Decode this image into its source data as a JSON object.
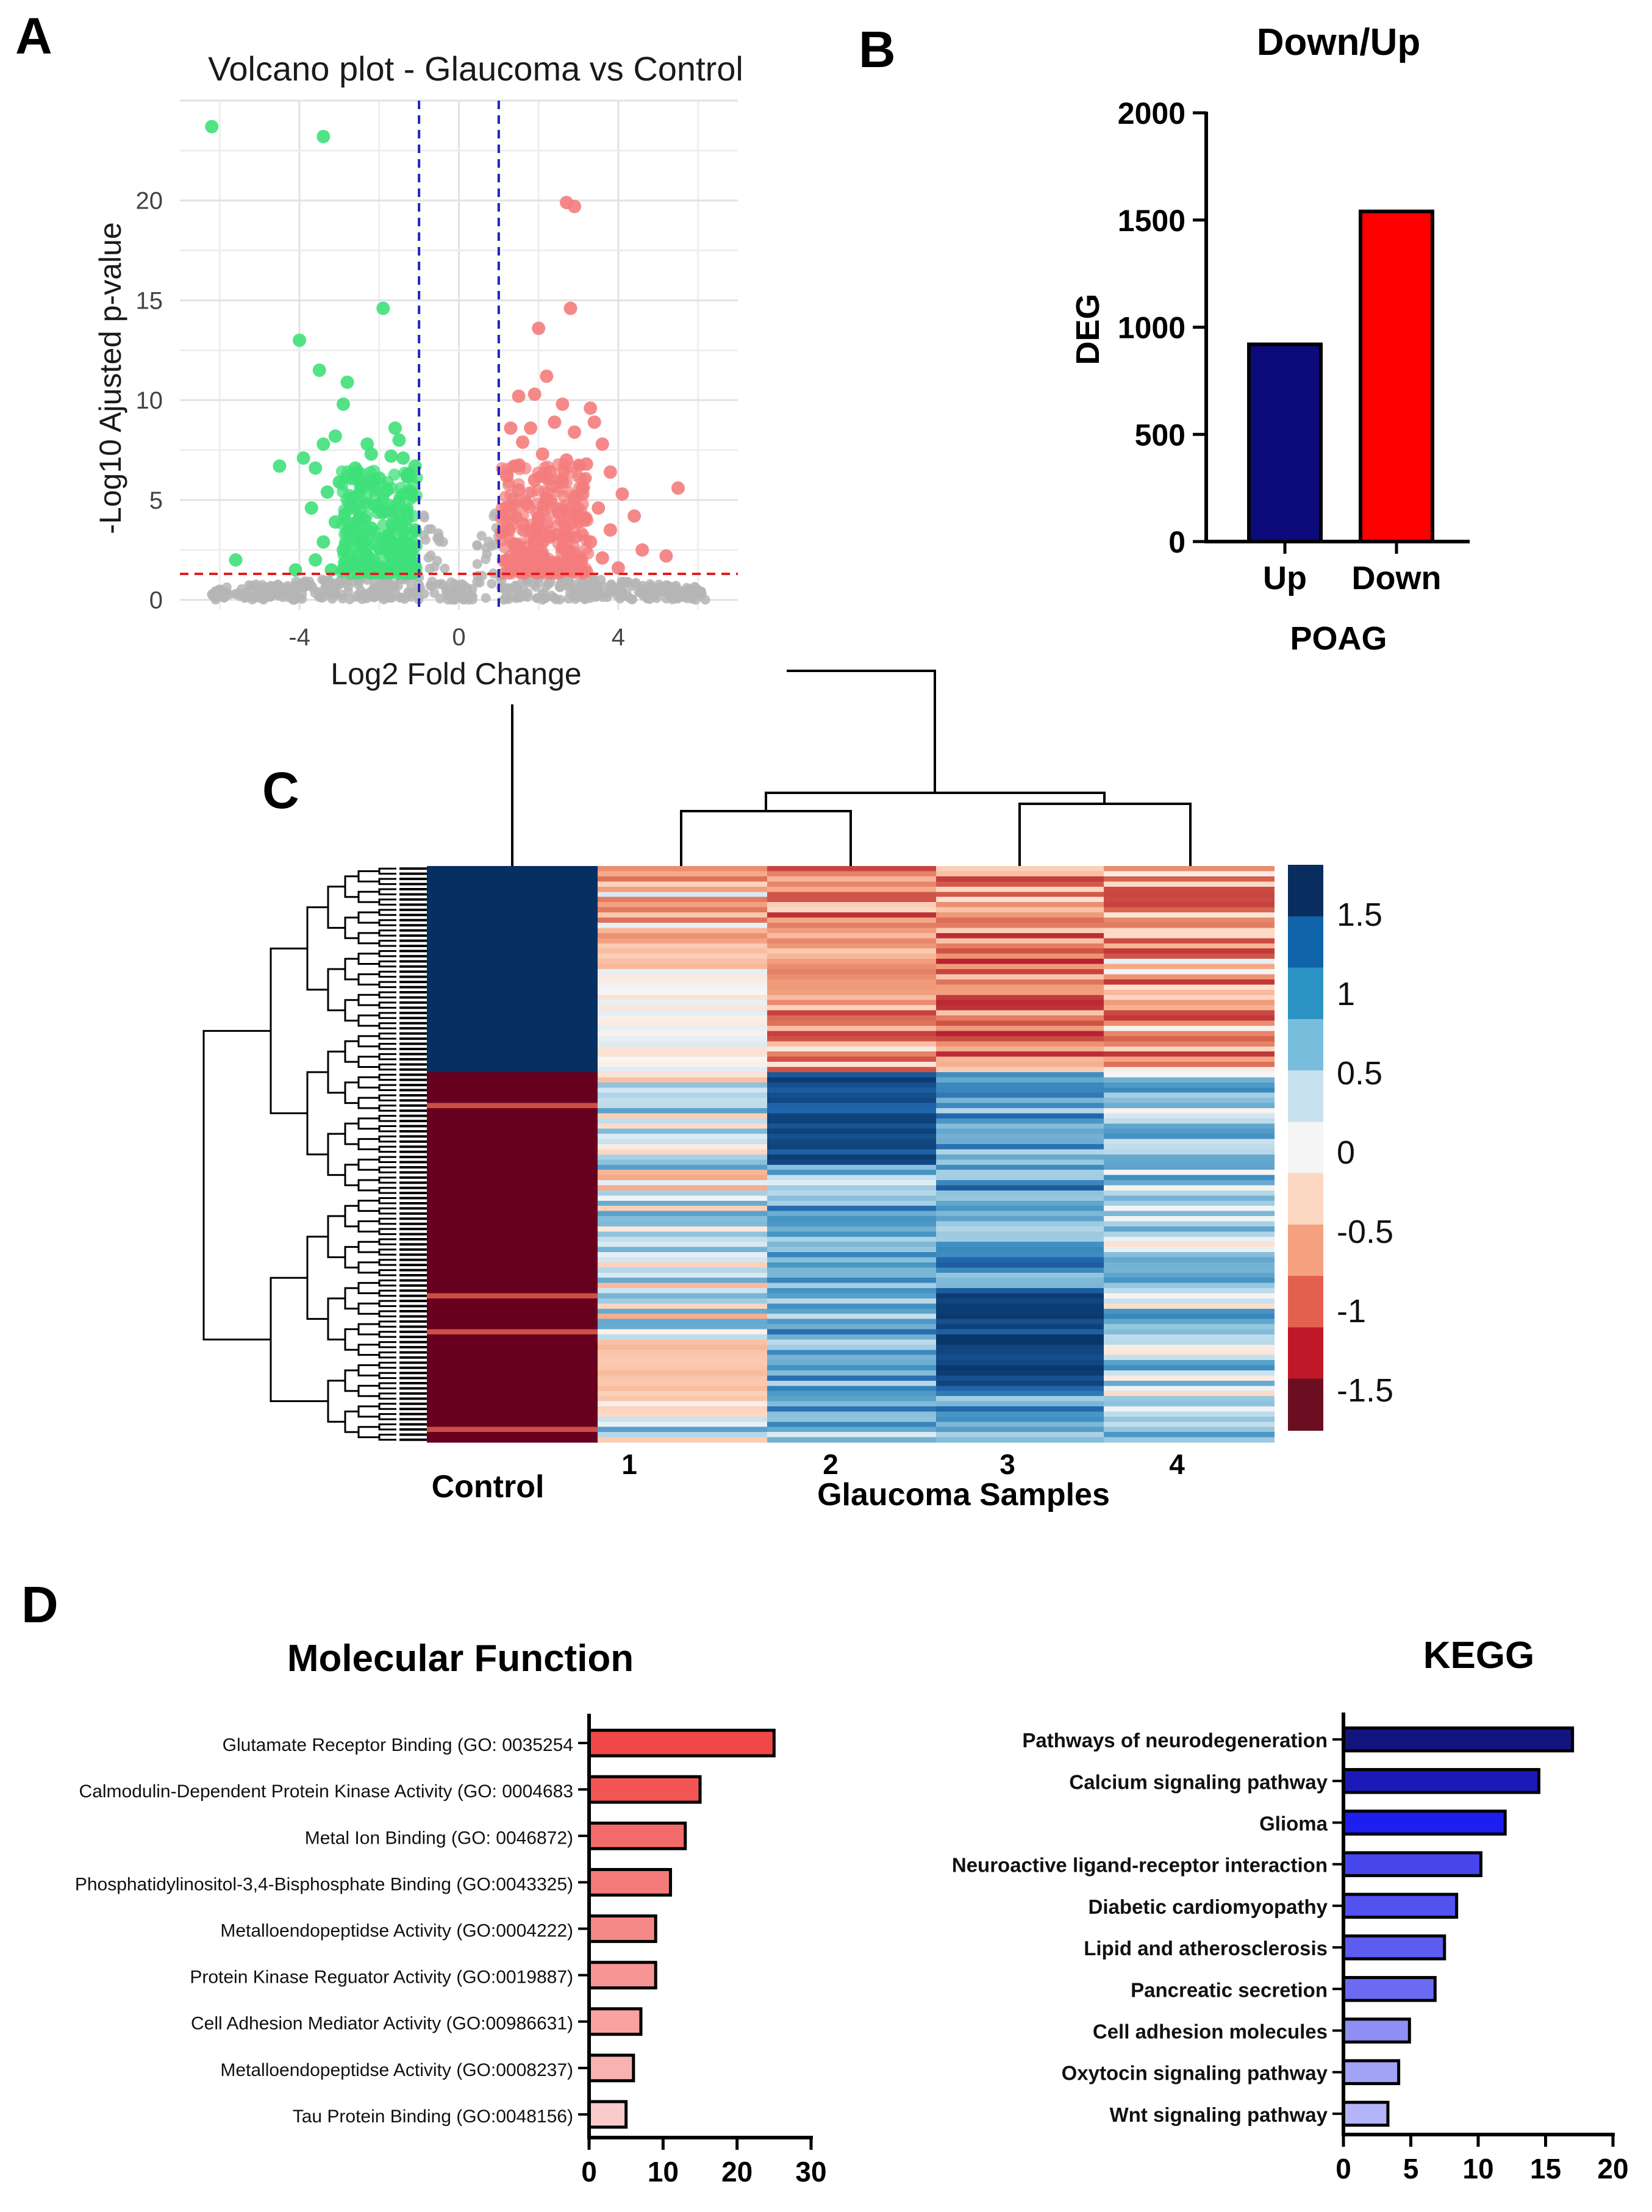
{
  "panels": {
    "A": "A",
    "B": "B",
    "C": "C",
    "D": "D"
  },
  "chart_data": [
    {
      "id": "volcano",
      "type": "scatter",
      "title": "Volcano plot - Glaucoma vs Control",
      "xlabel": "Log2 Fold Change",
      "ylabel": "-Log10 Ajusted p-value",
      "xlim": [
        -7,
        7
      ],
      "ylim": [
        -0.5,
        25
      ],
      "xticks": [
        -4,
        0,
        4
      ],
      "yticks": [
        0,
        5,
        10,
        15,
        20
      ],
      "fc_threshold": [
        -1,
        1
      ],
      "p_threshold": 1.3,
      "colors": {
        "down": "#3fe07a",
        "up": "#f47c7c",
        "ns": "#b5b5b5",
        "threshold_v": "#2424b8",
        "threshold_h": "#e02020"
      },
      "series": [
        {
          "name": "Down",
          "points": [
            [
              -6.2,
              23.7
            ],
            [
              -3.4,
              23.2
            ],
            [
              -1.9,
              14.6
            ],
            [
              -4,
              13
            ],
            [
              -3.5,
              11.5
            ],
            [
              -2.8,
              10.9
            ],
            [
              -2.9,
              9.8
            ],
            [
              -1.6,
              8.6
            ],
            [
              -1.5,
              8
            ],
            [
              -2.3,
              7.8
            ],
            [
              -3.1,
              8.2
            ],
            [
              -3.4,
              7.8
            ],
            [
              -3.9,
              7.1
            ],
            [
              -4.5,
              6.7
            ],
            [
              -2.2,
              7.3
            ],
            [
              -1.7,
              7.2
            ],
            [
              -1.4,
              7.1
            ],
            [
              -1.1,
              6.7
            ],
            [
              -2.6,
              6.6
            ],
            [
              -3.6,
              6.6
            ],
            [
              -2,
              6.1
            ],
            [
              -1.3,
              6.2
            ],
            [
              -3,
              5.9
            ],
            [
              -2.4,
              5.7
            ],
            [
              -1.8,
              5.5
            ],
            [
              -3.3,
              5.4
            ],
            [
              -1.2,
              5.3
            ],
            [
              -2.7,
              5.1
            ],
            [
              -1.5,
              4.9
            ],
            [
              -2.1,
              4.7
            ],
            [
              -3.7,
              4.6
            ],
            [
              -1.9,
              4.4
            ],
            [
              -1.3,
              4.3
            ],
            [
              -2.5,
              4.1
            ],
            [
              -3.1,
              3.9
            ],
            [
              -1.6,
              3.7
            ],
            [
              -2.2,
              3.6
            ],
            [
              -1.1,
              3.5
            ],
            [
              -2.8,
              3.4
            ],
            [
              -1.8,
              3.2
            ],
            [
              -2.4,
              3
            ],
            [
              -3.4,
              2.9
            ],
            [
              -1.4,
              2.8
            ],
            [
              -2,
              2.6
            ],
            [
              -2.9,
              2.5
            ],
            [
              -1.2,
              2.4
            ],
            [
              -1.7,
              2.2
            ],
            [
              -2.3,
              2.1
            ],
            [
              -3.6,
              2
            ],
            [
              -5.6,
              2
            ],
            [
              -1.5,
              1.9
            ],
            [
              -2.6,
              1.8
            ],
            [
              -1.1,
              1.7
            ],
            [
              -2.1,
              1.6
            ],
            [
              -3.2,
              1.5
            ],
            [
              -1.9,
              1.45
            ],
            [
              -4.1,
              1.5
            ]
          ]
        },
        {
          "name": "Up",
          "points": [
            [
              2.9,
              19.7
            ],
            [
              2.7,
              19.9
            ],
            [
              2.8,
              14.6
            ],
            [
              2,
              13.6
            ],
            [
              2.2,
              11.2
            ],
            [
              1.5,
              10.2
            ],
            [
              1.9,
              10.3
            ],
            [
              2.6,
              9.8
            ],
            [
              3.3,
              9.6
            ],
            [
              3.4,
              8.9
            ],
            [
              1.3,
              8.6
            ],
            [
              2.4,
              8.9
            ],
            [
              1.8,
              8.6
            ],
            [
              2.9,
              8.4
            ],
            [
              3.6,
              7.8
            ],
            [
              1.6,
              7.9
            ],
            [
              2.1,
              7.3
            ],
            [
              2.7,
              7
            ],
            [
              3.2,
              6.8
            ],
            [
              1.4,
              6.7
            ],
            [
              2.3,
              6.4
            ],
            [
              3.8,
              6.4
            ],
            [
              1.9,
              6
            ],
            [
              1.2,
              6.2
            ],
            [
              2.6,
              5.9
            ],
            [
              3.1,
              5.6
            ],
            [
              5.5,
              5.6
            ],
            [
              4.1,
              5.3
            ],
            [
              1.5,
              5.5
            ],
            [
              2.2,
              5.1
            ],
            [
              2.9,
              5
            ],
            [
              1.7,
              4.8
            ],
            [
              3.5,
              4.6
            ],
            [
              2.5,
              4.4
            ],
            [
              1.3,
              4.3
            ],
            [
              4.4,
              4.2
            ],
            [
              2,
              4.1
            ],
            [
              3,
              3.9
            ],
            [
              1.6,
              3.8
            ],
            [
              2.7,
              3.6
            ],
            [
              3.8,
              3.5
            ],
            [
              1.1,
              3.4
            ],
            [
              2.3,
              3.2
            ],
            [
              1.9,
              3
            ],
            [
              3.3,
              2.9
            ],
            [
              1.4,
              2.8
            ],
            [
              2.6,
              2.6
            ],
            [
              4.6,
              2.5
            ],
            [
              1.8,
              2.4
            ],
            [
              5.2,
              2.2
            ],
            [
              2.1,
              2.2
            ],
            [
              3.6,
              2.1
            ],
            [
              1.2,
              2
            ],
            [
              2.9,
              1.9
            ],
            [
              1.6,
              1.8
            ],
            [
              2.4,
              1.7
            ],
            [
              4,
              1.6
            ],
            [
              1.3,
              1.5
            ],
            [
              3.1,
              1.45
            ],
            [
              1.9,
              1.4
            ]
          ]
        }
      ]
    },
    {
      "id": "degbar",
      "type": "bar",
      "title": "Down/Up",
      "xlabel": "POAG",
      "ylabel": "DEG",
      "categories": [
        "Up",
        "Down"
      ],
      "values": [
        920,
        1540
      ],
      "colors": [
        "#0d0a7c",
        "#ff0000"
      ],
      "ylim": [
        0,
        2000
      ],
      "yticks": [
        0,
        500,
        1000,
        1500,
        2000
      ]
    },
    {
      "id": "heatmap",
      "type": "heatmap",
      "columns": [
        "Control",
        "1",
        "2",
        "3",
        "4"
      ],
      "column_label": "Glaucoma Samples",
      "control_label": "Control",
      "legend_ticks": [
        "1.5",
        "1",
        "0.5",
        "0",
        "-0.5",
        "-1",
        "-1.5"
      ],
      "legend_colors": [
        "#082d5e",
        "#0f63a8",
        "#2b92c4",
        "#78bedc",
        "#c8e1ee",
        "#f5f5f5",
        "#fcd8c2",
        "#f5a07e",
        "#e3604f",
        "#c01828",
        "#6c0e22"
      ],
      "n_rows_up": 40,
      "n_rows_down": 72,
      "control_values": [
        1.5,
        -1.5
      ]
    },
    {
      "id": "mf",
      "type": "bar",
      "orientation": "horizontal",
      "title": "Molecular Function",
      "categories": [
        "Glutamate Receptor Binding (GO: 0035254",
        "Calmodulin-Dependent Protein Kinase Activity (GO: 0004683",
        "Metal Ion Binding (GO: 0046872)",
        "Phosphatidylinositol-3,4-Bisphosphate Binding (GO:0043325)",
        "Metalloendopeptidse Activity (GO:0004222)",
        "Protein Kinase Reguator Activity (GO:0019887)",
        "Cell Adhesion Mediator Activity (GO:00986631)",
        "Metalloendopeptidse Activity (GO:0008237)",
        "Tau Protein Binding (GO:0048156)"
      ],
      "values": [
        25,
        15,
        13,
        11,
        9,
        9,
        7,
        6,
        5
      ],
      "colors": [
        "#f04848",
        "#f35454",
        "#f46a6a",
        "#f57a7a",
        "#f68888",
        "#f79494",
        "#f8a2a2",
        "#f9b2b2",
        "#fbcaca"
      ],
      "xlim": [
        0,
        30
      ],
      "xticks": [
        0,
        10,
        20,
        30
      ]
    },
    {
      "id": "kegg",
      "type": "bar",
      "orientation": "horizontal",
      "title": "KEGG",
      "categories": [
        "Pathways of neurodegeneration",
        "Calcium signaling pathway",
        "Glioma",
        "Neuroactive ligand-receptor interaction",
        "Diabetic cardiomyopathy",
        "Lipid and atherosclerosis",
        "Pancreatic secretion",
        "Cell adhesion molecules",
        "Oxytocin signaling pathway",
        "Wnt signaling pathway"
      ],
      "values": [
        17,
        14.5,
        12,
        10.2,
        8.4,
        7.5,
        6.8,
        4.9,
        4.1,
        3.3
      ],
      "colors": [
        "#14147e",
        "#1a1ab8",
        "#1e1ef0",
        "#4646ec",
        "#5252ee",
        "#5c5cf0",
        "#6a6af2",
        "#8e8ef5",
        "#a2a2f7",
        "#b4b4f8"
      ],
      "xlim": [
        0,
        20
      ],
      "xticks": [
        0,
        5,
        10,
        15,
        20
      ]
    }
  ]
}
